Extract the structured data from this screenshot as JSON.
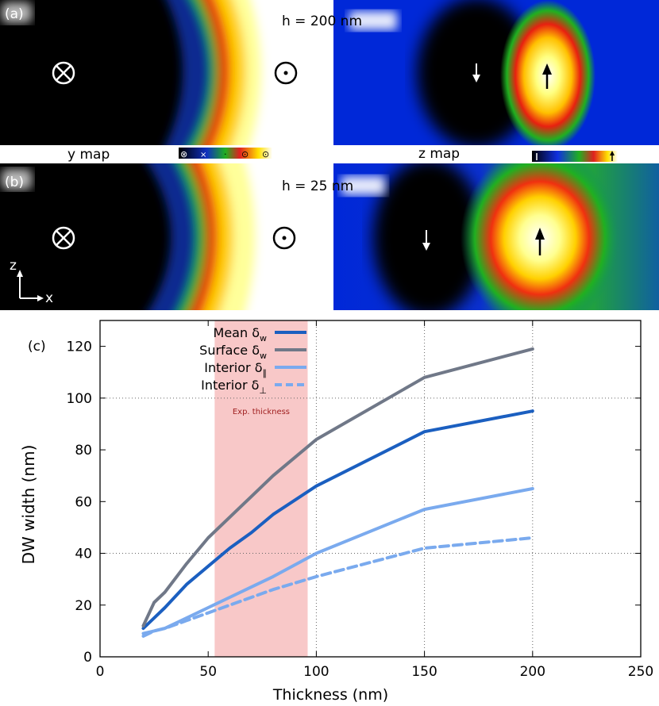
{
  "panel_a": {
    "label": "(a)",
    "height_label": "h = 200 nm",
    "y_map_label": "y map",
    "z_map_label": "z map",
    "y_scale_ticks": [
      "⊗",
      "×",
      "·",
      "⊙",
      "⊙"
    ]
  },
  "panel_b": {
    "label": "(b)",
    "height_label": "h = 25 nm",
    "axis_z": "z",
    "axis_x": "x"
  },
  "colors": {
    "mean": "#1b5fc0",
    "surface": "#707888",
    "interior_par": "#7aaaee",
    "interior_perp": "#7aaaee",
    "exp_band": "#f8c8c8"
  },
  "chart_data": {
    "type": "line",
    "panel_label": "(c)",
    "xlabel": "Thickness (nm)",
    "ylabel": "DW width (nm)",
    "xlim": [
      0,
      250
    ],
    "ylim": [
      0,
      130
    ],
    "xticks": [
      0,
      50,
      100,
      150,
      200,
      250
    ],
    "yticks": [
      0,
      20,
      40,
      60,
      80,
      100,
      120
    ],
    "grid_x": [
      100,
      150,
      200
    ],
    "grid_y": [
      40,
      100
    ],
    "band": {
      "x0": 53,
      "x1": 96,
      "label": "Exp. thickness"
    },
    "legend_position": "top-left",
    "series": [
      {
        "name": "Mean δ",
        "sub": "w",
        "key": "mean",
        "dashed": false,
        "x": [
          20,
          25,
          30,
          40,
          50,
          60,
          70,
          80,
          100,
          150,
          200
        ],
        "y": [
          11,
          15,
          19,
          28,
          35,
          42,
          48,
          55,
          66,
          87,
          95
        ]
      },
      {
        "name": "Surface δ",
        "sub": "w",
        "key": "surface",
        "dashed": false,
        "x": [
          20,
          25,
          30,
          40,
          50,
          60,
          70,
          80,
          100,
          150,
          200
        ],
        "y": [
          12,
          21,
          25,
          36,
          46,
          54,
          62,
          70,
          84,
          108,
          119
        ]
      },
      {
        "name": "Interior δ",
        "sub": "∥",
        "key": "interior_par",
        "dashed": false,
        "x": [
          20,
          25,
          30,
          40,
          50,
          60,
          70,
          80,
          100,
          150,
          200
        ],
        "y": [
          9,
          10,
          11,
          15,
          19,
          23,
          27,
          31,
          40,
          57,
          65
        ]
      },
      {
        "name": "Interior δ",
        "sub": "⊥",
        "key": "interior_perp",
        "dashed": true,
        "x": [
          20,
          25,
          30,
          40,
          50,
          60,
          70,
          80,
          100,
          150,
          200
        ],
        "y": [
          8,
          10,
          11,
          14,
          17,
          20,
          23,
          26,
          31,
          42,
          46
        ]
      }
    ]
  }
}
